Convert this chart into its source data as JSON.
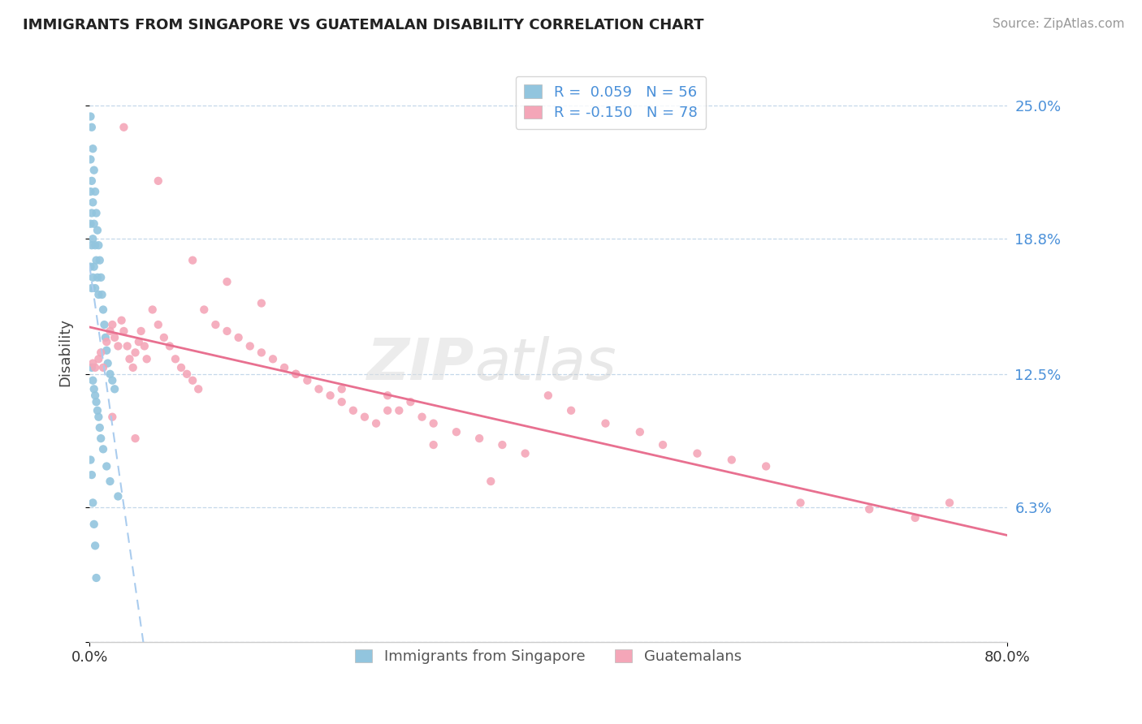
{
  "title": "IMMIGRANTS FROM SINGAPORE VS GUATEMALAN DISABILITY CORRELATION CHART",
  "source": "Source: ZipAtlas.com",
  "ylabel": "Disability",
  "yticks": [
    0.0,
    0.063,
    0.125,
    0.188,
    0.25
  ],
  "ytick_labels": [
    "",
    "6.3%",
    "12.5%",
    "18.8%",
    "25.0%"
  ],
  "xlim": [
    0.0,
    0.8
  ],
  "ylim": [
    0.0,
    0.27
  ],
  "blue_color": "#92c5de",
  "pink_color": "#f4a6b8",
  "blue_line_color": "#aaccee",
  "pink_line_color": "#e87090",
  "watermark_zip": "ZIP",
  "watermark_atlas": "atlas",
  "singapore_x": [
    0.001,
    0.001,
    0.001,
    0.001,
    0.001,
    0.002,
    0.002,
    0.002,
    0.002,
    0.002,
    0.003,
    0.003,
    0.003,
    0.003,
    0.004,
    0.004,
    0.004,
    0.005,
    0.005,
    0.005,
    0.006,
    0.006,
    0.007,
    0.007,
    0.008,
    0.008,
    0.009,
    0.01,
    0.011,
    0.012,
    0.013,
    0.014,
    0.015,
    0.016,
    0.018,
    0.02,
    0.022,
    0.002,
    0.003,
    0.004,
    0.005,
    0.006,
    0.007,
    0.008,
    0.009,
    0.01,
    0.012,
    0.015,
    0.018,
    0.025,
    0.001,
    0.002,
    0.003,
    0.004,
    0.005,
    0.006
  ],
  "singapore_y": [
    0.245,
    0.225,
    0.21,
    0.195,
    0.175,
    0.24,
    0.215,
    0.2,
    0.185,
    0.165,
    0.23,
    0.205,
    0.188,
    0.17,
    0.22,
    0.195,
    0.175,
    0.21,
    0.185,
    0.165,
    0.2,
    0.178,
    0.192,
    0.17,
    0.185,
    0.162,
    0.178,
    0.17,
    0.162,
    0.155,
    0.148,
    0.142,
    0.136,
    0.13,
    0.125,
    0.122,
    0.118,
    0.128,
    0.122,
    0.118,
    0.115,
    0.112,
    0.108,
    0.105,
    0.1,
    0.095,
    0.09,
    0.082,
    0.075,
    0.068,
    0.085,
    0.078,
    0.065,
    0.055,
    0.045,
    0.03
  ],
  "guatemalan_x": [
    0.003,
    0.005,
    0.008,
    0.01,
    0.012,
    0.015,
    0.018,
    0.02,
    0.022,
    0.025,
    0.028,
    0.03,
    0.033,
    0.035,
    0.038,
    0.04,
    0.043,
    0.045,
    0.048,
    0.05,
    0.055,
    0.06,
    0.065,
    0.07,
    0.075,
    0.08,
    0.085,
    0.09,
    0.095,
    0.1,
    0.11,
    0.12,
    0.13,
    0.14,
    0.15,
    0.16,
    0.17,
    0.18,
    0.19,
    0.2,
    0.21,
    0.22,
    0.23,
    0.24,
    0.25,
    0.26,
    0.27,
    0.28,
    0.29,
    0.3,
    0.32,
    0.34,
    0.36,
    0.38,
    0.4,
    0.42,
    0.45,
    0.48,
    0.5,
    0.53,
    0.56,
    0.59,
    0.03,
    0.06,
    0.09,
    0.12,
    0.15,
    0.18,
    0.22,
    0.26,
    0.3,
    0.35,
    0.62,
    0.68,
    0.72,
    0.75,
    0.02,
    0.04
  ],
  "guatemalan_y": [
    0.13,
    0.128,
    0.132,
    0.135,
    0.128,
    0.14,
    0.145,
    0.148,
    0.142,
    0.138,
    0.15,
    0.145,
    0.138,
    0.132,
    0.128,
    0.135,
    0.14,
    0.145,
    0.138,
    0.132,
    0.155,
    0.148,
    0.142,
    0.138,
    0.132,
    0.128,
    0.125,
    0.122,
    0.118,
    0.155,
    0.148,
    0.145,
    0.142,
    0.138,
    0.135,
    0.132,
    0.128,
    0.125,
    0.122,
    0.118,
    0.115,
    0.112,
    0.108,
    0.105,
    0.102,
    0.115,
    0.108,
    0.112,
    0.105,
    0.102,
    0.098,
    0.095,
    0.092,
    0.088,
    0.115,
    0.108,
    0.102,
    0.098,
    0.092,
    0.088,
    0.085,
    0.082,
    0.24,
    0.215,
    0.178,
    0.168,
    0.158,
    0.125,
    0.118,
    0.108,
    0.092,
    0.075,
    0.065,
    0.062,
    0.058,
    0.065,
    0.105,
    0.095
  ]
}
